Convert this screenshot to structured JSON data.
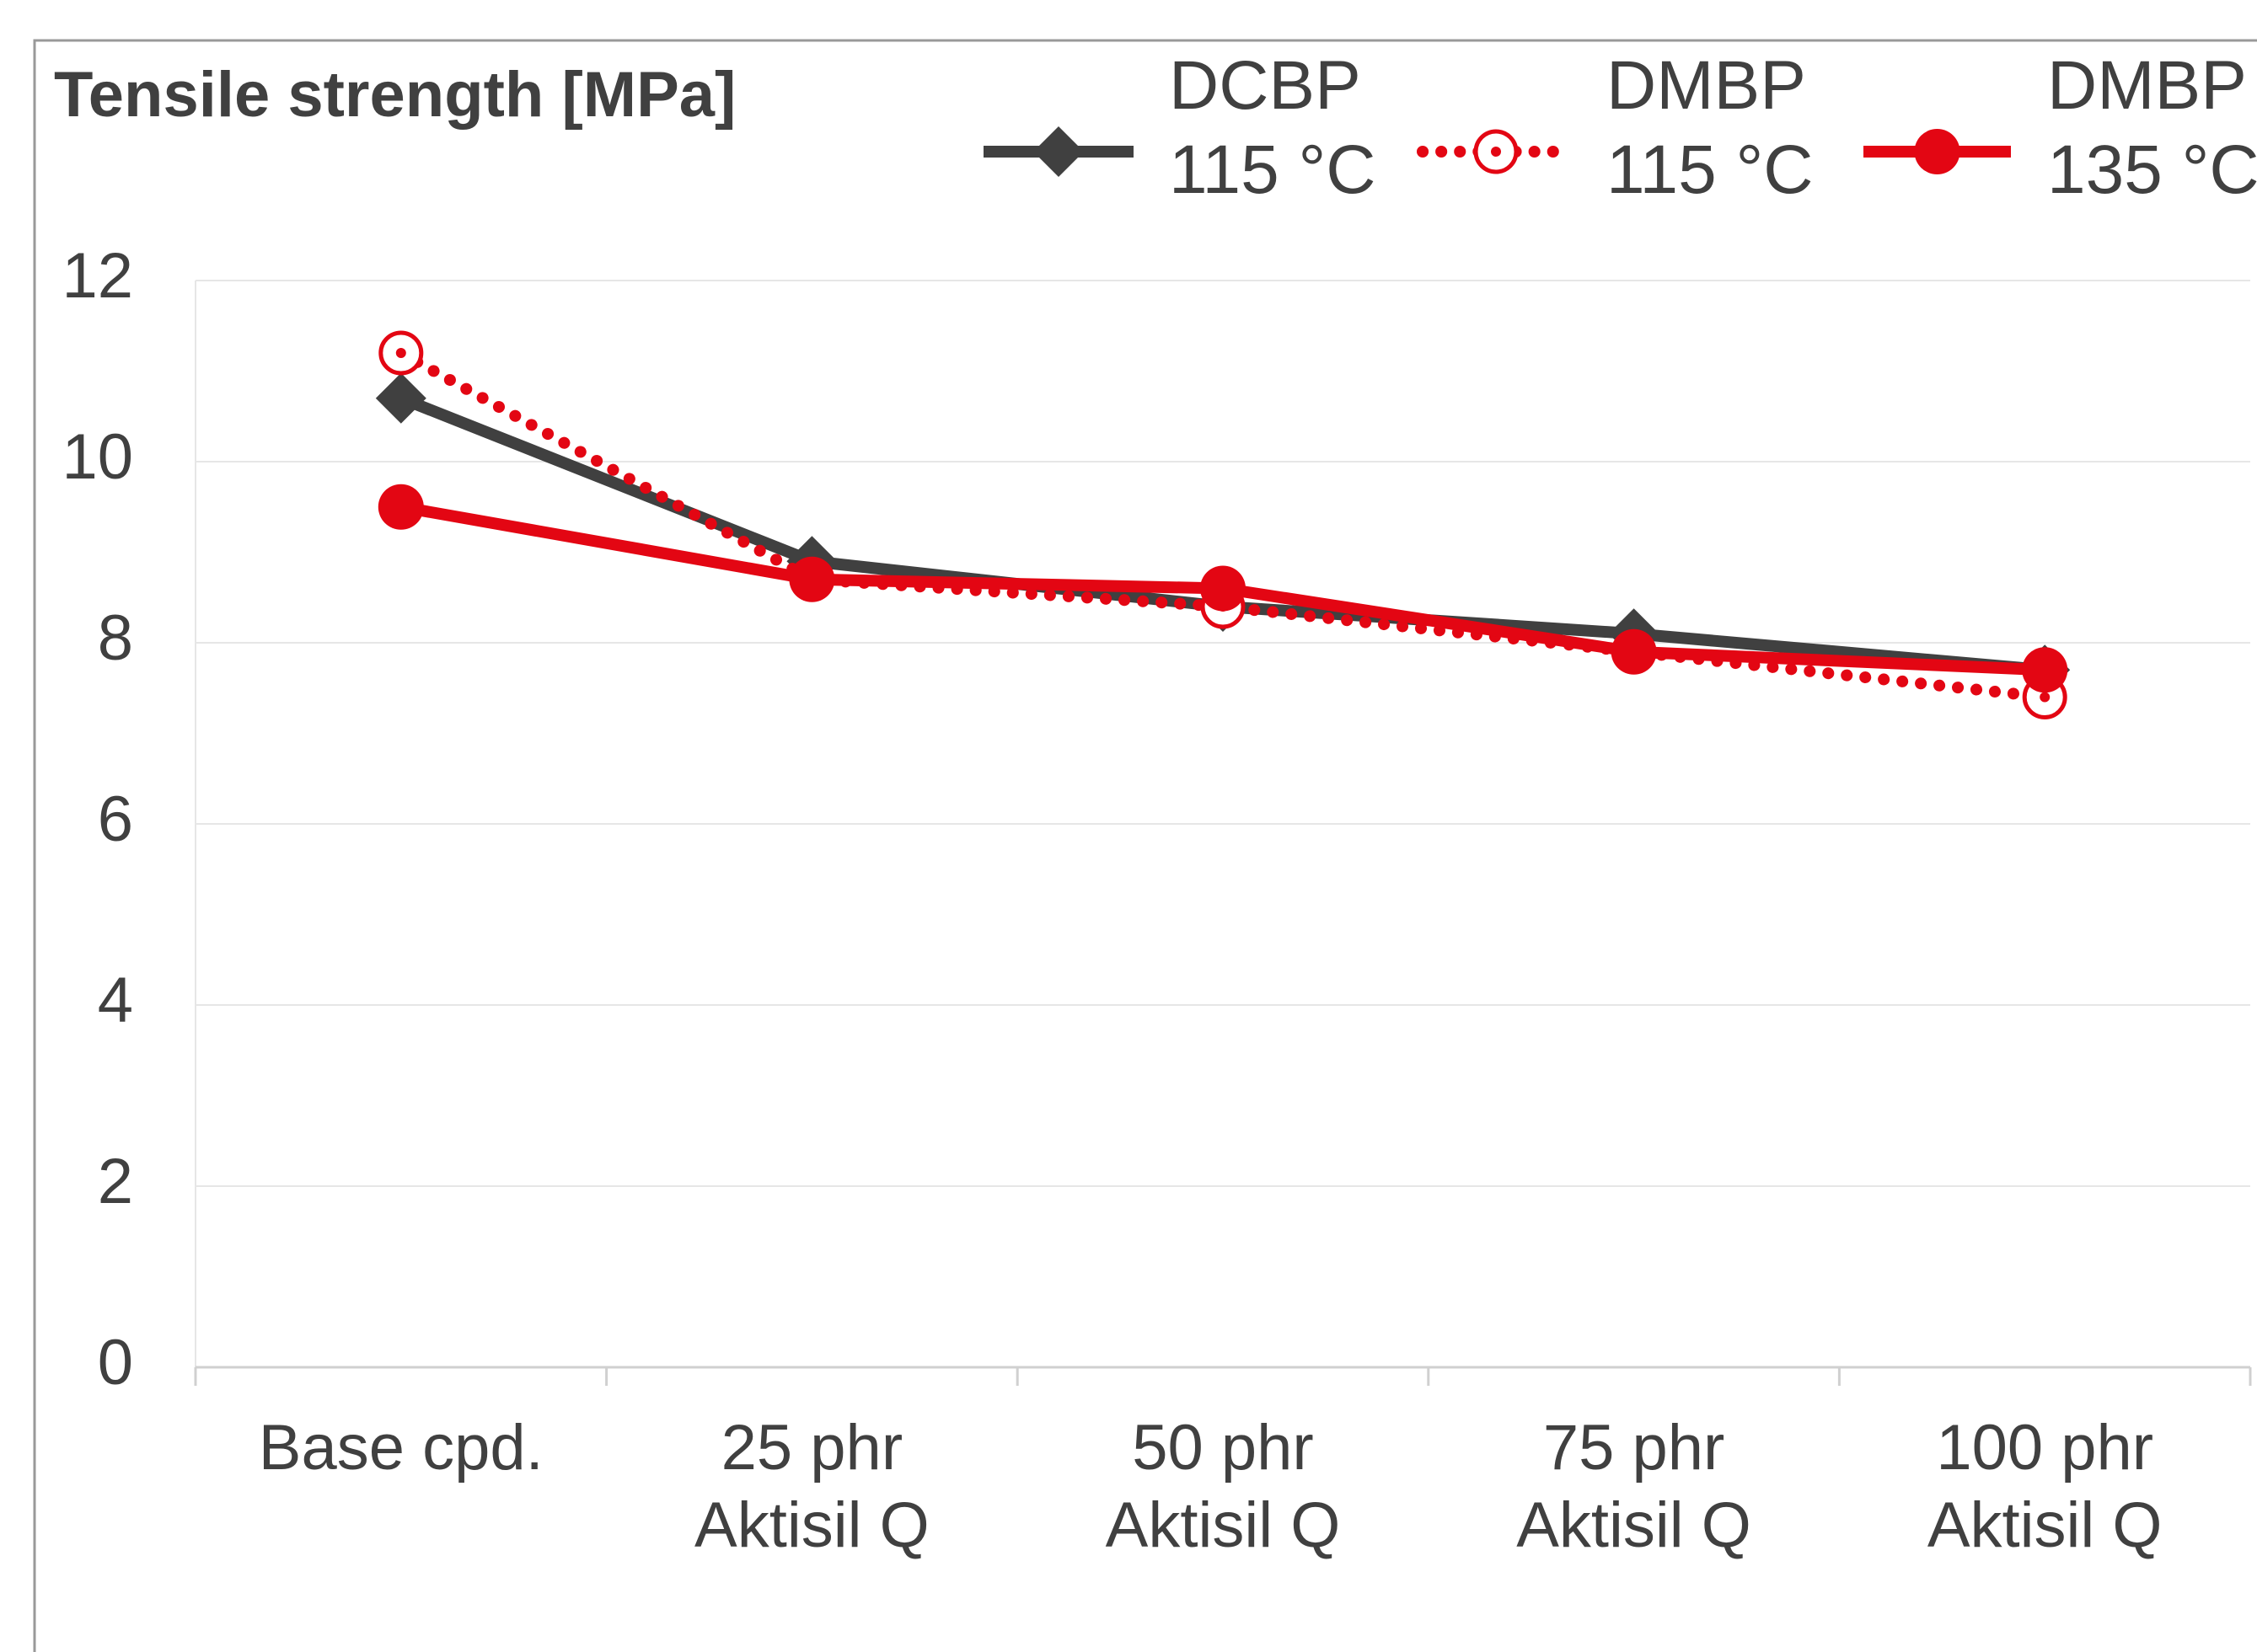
{
  "chart_data": {
    "type": "line",
    "title": "Tensile strength [MPa]",
    "categories": [
      [
        "Base cpd."
      ],
      [
        "25 phr",
        "Aktisil Q"
      ],
      [
        "50 phr",
        "Aktisil Q"
      ],
      [
        "75 phr",
        "Aktisil Q"
      ],
      [
        "100 phr",
        "Aktisil Q"
      ]
    ],
    "series": [
      {
        "name": "DCBP 115 °C",
        "color": "#404040",
        "marker": "diamond",
        "line_style": "solid",
        "values": [
          10.7,
          8.9,
          8.4,
          8.1,
          7.7
        ]
      },
      {
        "name": "DMBP 115 °C",
        "color": "#e30613",
        "marker": "circle-open",
        "line_style": "dotted",
        "values": [
          11.2,
          8.7,
          8.4,
          7.9,
          7.4
        ]
      },
      {
        "name": "DMBP 135 °C",
        "color": "#e30613",
        "marker": "circle",
        "line_style": "solid",
        "values": [
          9.5,
          8.7,
          8.6,
          7.9,
          7.7
        ]
      }
    ],
    "ylim": [
      0,
      12
    ],
    "yticks": [
      0,
      2,
      4,
      6,
      8,
      10,
      12
    ],
    "grid": true
  }
}
